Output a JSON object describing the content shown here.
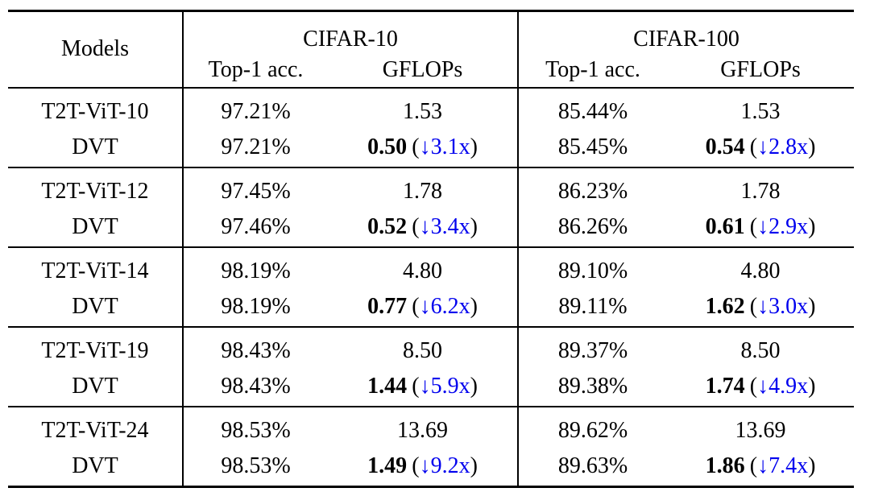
{
  "colors": {
    "accent_blue": "#0000ee",
    "text": "#000000",
    "rule": "#000000",
    "background": "#ffffff"
  },
  "punct": {
    "open": "(",
    "close": ")"
  },
  "table": {
    "header": {
      "models": "Models",
      "groups": [
        {
          "dataset": "CIFAR-10",
          "acc": "Top-1 acc.",
          "gflops": "GFLOPs"
        },
        {
          "dataset": "CIFAR-100",
          "acc": "Top-1 acc.",
          "gflops": "GFLOPs"
        }
      ]
    },
    "blocks": [
      {
        "model": "T2T-ViT-10",
        "base": {
          "c10_acc": "97.21%",
          "c10_gflops": "1.53",
          "c100_acc": "85.44%",
          "c100_gflops": "1.53"
        },
        "dvt": {
          "label": "DVT",
          "c10_acc": "97.21%",
          "c10_gflops": "0.50",
          "c10_speedup": "↓3.1x",
          "c100_acc": "85.45%",
          "c100_gflops": "0.54",
          "c100_speedup": "↓2.8x"
        }
      },
      {
        "model": "T2T-ViT-12",
        "base": {
          "c10_acc": "97.45%",
          "c10_gflops": "1.78",
          "c100_acc": "86.23%",
          "c100_gflops": "1.78"
        },
        "dvt": {
          "label": "DVT",
          "c10_acc": "97.46%",
          "c10_gflops": "0.52",
          "c10_speedup": "↓3.4x",
          "c100_acc": "86.26%",
          "c100_gflops": "0.61",
          "c100_speedup": "↓2.9x"
        }
      },
      {
        "model": "T2T-ViT-14",
        "base": {
          "c10_acc": "98.19%",
          "c10_gflops": "4.80",
          "c100_acc": "89.10%",
          "c100_gflops": "4.80"
        },
        "dvt": {
          "label": "DVT",
          "c10_acc": "98.19%",
          "c10_gflops": "0.77",
          "c10_speedup": "↓6.2x",
          "c100_acc": "89.11%",
          "c100_gflops": "1.62",
          "c100_speedup": "↓3.0x"
        }
      },
      {
        "model": "T2T-ViT-19",
        "base": {
          "c10_acc": "98.43%",
          "c10_gflops": "8.50",
          "c100_acc": "89.37%",
          "c100_gflops": "8.50"
        },
        "dvt": {
          "label": "DVT",
          "c10_acc": "98.43%",
          "c10_gflops": "1.44",
          "c10_speedup": "↓5.9x",
          "c100_acc": "89.38%",
          "c100_gflops": "1.74",
          "c100_speedup": "↓4.9x"
        }
      },
      {
        "model": "T2T-ViT-24",
        "base": {
          "c10_acc": "98.53%",
          "c10_gflops": "13.69",
          "c100_acc": "89.62%",
          "c100_gflops": "13.69"
        },
        "dvt": {
          "label": "DVT",
          "c10_acc": "98.53%",
          "c10_gflops": "1.49",
          "c10_speedup": "↓9.2x",
          "c100_acc": "89.63%",
          "c100_gflops": "1.86",
          "c100_speedup": "↓7.4x"
        }
      }
    ]
  }
}
